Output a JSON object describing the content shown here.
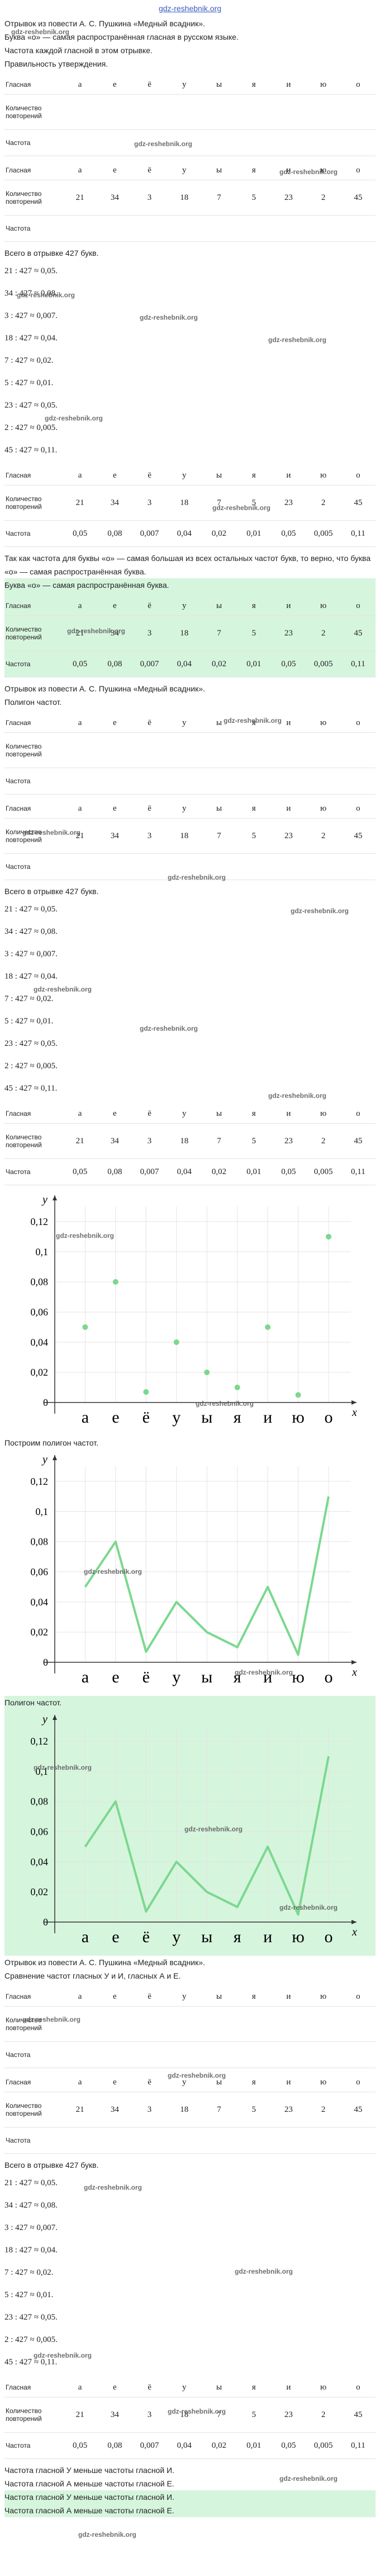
{
  "watermark": "gdz-reshebnik.org",
  "vowels_table": {
    "header_label": "Гласная",
    "vowels": [
      "а",
      "е",
      "ё",
      "у",
      "ы",
      "я",
      "и",
      "ю",
      "о"
    ],
    "count_label": "Количество повторений",
    "freq_label": "Частота",
    "counts": [
      21,
      34,
      3,
      18,
      7,
      5,
      23,
      2,
      45
    ],
    "frequencies": [
      "0,05",
      "0,08",
      "0,007",
      "0,04",
      "0,02",
      "0,01",
      "0,05",
      "0,005",
      "0,11"
    ]
  },
  "total": "Всего в отрывке 427 букв.",
  "computations": [
    "21 : 427 ≈ 0,05.",
    "34 : 427 ≈ 0,08.",
    "3 : 427 ≈ 0,007.",
    "18 : 427 ≈ 0,04.",
    "7 : 427 ≈ 0,02.",
    "5 : 427 ≈ 0,01.",
    "23 : 427 ≈ 0,05.",
    "2 : 427 ≈ 0,005.",
    "45 : 427 ≈ 0,11."
  ],
  "section1": {
    "lines": [
      "Отрывок из повести А. С. Пушкина «Медный всадник».",
      "Буква «о» — самая распространённая гласная в русском языке.",
      "Частота каждой гласной в этом отрывке.",
      "Правильность утверждения."
    ],
    "conclusion": "Так как частота для буквы «о» — самая большая из всех остальных частот букв, то верно, что буква «о» — самая распространённая буква.",
    "answer": "Буква «о» — самая распространённая буква."
  },
  "section2": {
    "lines": [
      "Отрывок из повести А. С. Пушкина «Медный всадник».",
      "Полигон частот."
    ],
    "plot_caption": "Построим полигон частот.",
    "answer": "Полигон частот."
  },
  "section3": {
    "lines": [
      "Отрывок из повести А. С. Пушкина «Медный всадник».",
      "Сравнение частот гласных У и И, гласных А и Е."
    ],
    "answers": [
      "Частота гласной У меньше частоты гласной И.",
      "Частота гласной А меньше частоты гласной Е."
    ]
  },
  "chart_data": [
    {
      "type": "scatter",
      "categories": [
        "а",
        "е",
        "ё",
        "у",
        "ы",
        "я",
        "и",
        "ю",
        "о"
      ],
      "values": [
        0.05,
        0.08,
        0.007,
        0.04,
        0.02,
        0.01,
        0.05,
        0.005,
        0.11
      ],
      "color": "#7bd88f",
      "ylim": [
        0,
        0.13
      ],
      "yticks": [
        0,
        {
          "value": 0.02,
          "label": "0,02"
        },
        {
          "value": 0.04,
          "label": "0,04"
        },
        {
          "value": 0.06,
          "label": "0,06"
        },
        {
          "value": 0.08,
          "label": "0,08"
        },
        {
          "value": 0.1,
          "label": "0,1"
        },
        {
          "value": 0.12,
          "label": "0,12"
        }
      ],
      "grid": true,
      "y_label": "y",
      "x_label": "x"
    },
    {
      "type": "line",
      "categories": [
        "а",
        "е",
        "ё",
        "у",
        "ы",
        "я",
        "и",
        "ю",
        "о"
      ],
      "values": [
        0.05,
        0.08,
        0.007,
        0.04,
        0.02,
        0.01,
        0.05,
        0.005,
        0.11
      ],
      "color": "#7bd88f",
      "ylim": [
        0,
        0.13
      ],
      "yticks": [
        0,
        {
          "value": 0.02,
          "label": "0,02"
        },
        {
          "value": 0.04,
          "label": "0,04"
        },
        {
          "value": 0.06,
          "label": "0,06"
        },
        {
          "value": 0.08,
          "label": "0,08"
        },
        {
          "value": 0.1,
          "label": "0,1"
        },
        {
          "value": 0.12,
          "label": "0,12"
        }
      ],
      "grid": true,
      "y_label": "y",
      "x_label": "x"
    },
    {
      "type": "line",
      "categories": [
        "а",
        "е",
        "ё",
        "у",
        "ы",
        "я",
        "и",
        "ю",
        "о"
      ],
      "values": [
        0.05,
        0.08,
        0.007,
        0.04,
        0.02,
        0.01,
        0.05,
        0.005,
        0.11
      ],
      "color": "#7bd88f",
      "ylim": [
        0,
        0.13
      ],
      "yticks": [
        0,
        {
          "value": 0.02,
          "label": "0,02"
        },
        {
          "value": 0.04,
          "label": "0,04"
        },
        {
          "value": 0.06,
          "label": "0,06"
        },
        {
          "value": 0.08,
          "label": "0,08"
        },
        {
          "value": 0.1,
          "label": "0,1"
        },
        {
          "value": 0.12,
          "label": "0,12"
        }
      ],
      "grid": true,
      "y_label": "y",
      "x_label": "x"
    }
  ]
}
